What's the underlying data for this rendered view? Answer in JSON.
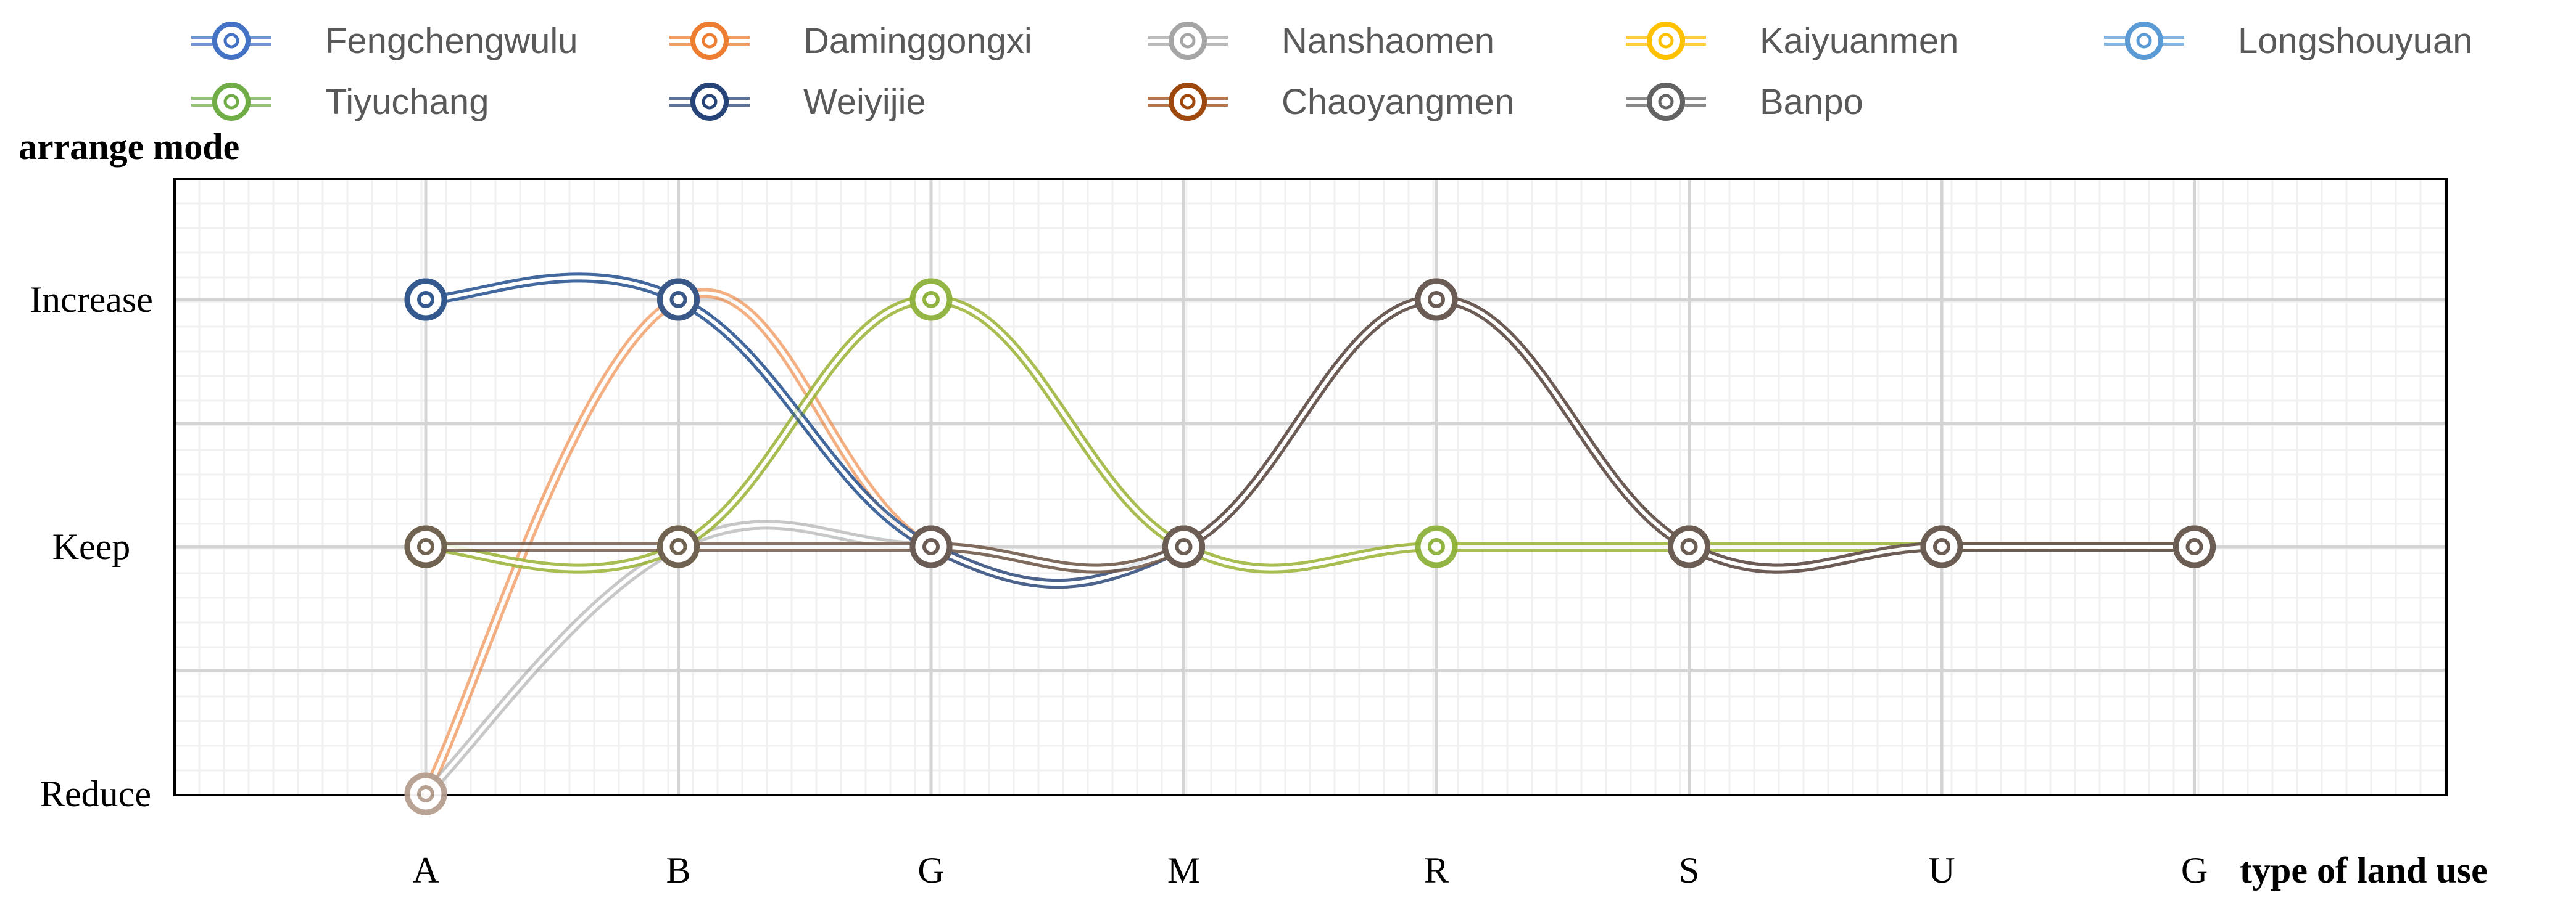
{
  "chart_data": {
    "type": "line",
    "ylabel": "arrange mode",
    "xlabel": "type of  land use",
    "categories": [
      "A",
      "B",
      "G",
      "M",
      "R",
      "S",
      "U",
      "G"
    ],
    "y_levels": [
      "Reduce",
      "Keep",
      "Increase"
    ],
    "ylim": [
      0,
      2
    ],
    "grid": true,
    "legend_position": "top",
    "series": [
      {
        "name": "Fengchengwulu",
        "color": "#4472C4",
        "values": [
          2,
          2,
          1,
          1,
          2,
          1,
          1,
          1
        ]
      },
      {
        "name": "Daminggongxi",
        "color": "#ED7D31",
        "values": [
          0,
          2,
          1,
          1,
          2,
          1,
          1,
          1
        ]
      },
      {
        "name": "Nanshaomen",
        "color": "#A5A5A5",
        "values": [
          0,
          1,
          1,
          1,
          2,
          1,
          1,
          1
        ]
      },
      {
        "name": "Kaiyuanmen",
        "color": "#FFC000",
        "values": [
          1,
          1,
          2,
          1,
          1,
          1,
          1,
          1
        ]
      },
      {
        "name": "Longshouyuan",
        "color": "#5B9BD5",
        "values": [
          2,
          2,
          1,
          1,
          2,
          1,
          1,
          1
        ]
      },
      {
        "name": "Tiyuchang",
        "color": "#70AD47",
        "values": [
          1,
          1,
          2,
          1,
          1,
          1,
          1,
          1
        ]
      },
      {
        "name": "Weiyijie",
        "color": "#264478",
        "values": [
          2,
          2,
          1,
          1,
          2,
          1,
          1,
          1
        ]
      },
      {
        "name": "Chaoyangmen",
        "color": "#9E480E",
        "values": [
          1,
          1,
          1,
          1,
          2,
          1,
          1,
          1
        ]
      },
      {
        "name": "Banpo",
        "color": "#636363",
        "values": [
          1,
          1,
          1,
          1,
          2,
          1,
          1,
          1
        ]
      }
    ]
  }
}
